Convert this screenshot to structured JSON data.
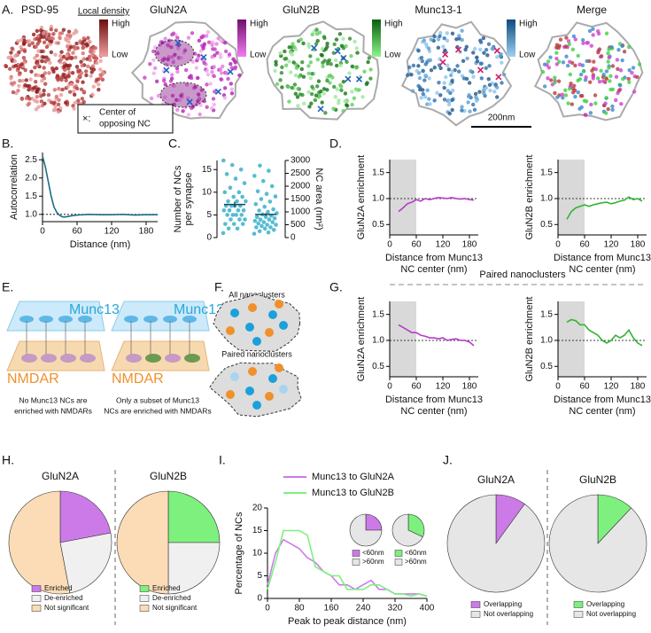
{
  "panel_labels": [
    "A.",
    "B.",
    "C.",
    "D.",
    "E.",
    "F.",
    "G.",
    "H.",
    "I.",
    "J."
  ],
  "panel_a": {
    "images": [
      {
        "title": "PSD-95"
      },
      {
        "title": "GluN2A"
      },
      {
        "title": "GluN2B"
      },
      {
        "title": "Munc13-1"
      },
      {
        "title": "Merge"
      }
    ],
    "colorbar_title": "Local density",
    "colorbars": [
      {
        "high": "High",
        "low": "Low"
      },
      {
        "high": "High",
        "low": "Low"
      },
      {
        "high": "High",
        "low": "Low"
      },
      {
        "high": "High",
        "low": "Low"
      }
    ],
    "marker_legend": {
      "symbol": "×:",
      "lines": [
        "Center of",
        "opposing NC"
      ]
    },
    "scale_bar": "200nm"
  },
  "panel_e": {
    "schematics": [
      {
        "top": "Munc13",
        "bottom": "NMDAR",
        "caption": [
          "No Munc13 NCs are",
          "enriched with NMDARs"
        ]
      },
      {
        "top": "Munc13",
        "bottom": "NMDAR",
        "caption": [
          "Only a subset of Munc13",
          "NCs are enriched with NMDARs"
        ]
      }
    ]
  },
  "panel_f": {
    "labels": [
      "All nanoclusters",
      "Paired nanoclusters"
    ]
  },
  "panel_g": {
    "title": "Paired nanoclusters"
  },
  "chart_data": [
    {
      "type": "line",
      "ylabel": "Autocorrelation",
      "xlabel": [
        "Distance (nm)"
      ],
      "x": [
        0,
        5,
        10,
        15,
        20,
        25,
        30,
        35,
        40,
        50,
        60,
        80,
        100,
        120,
        140,
        160,
        180,
        200
      ],
      "series": [
        {
          "color": "#1d6f84",
          "values": [
            2.6,
            2.3,
            1.9,
            1.5,
            1.2,
            1.05,
            0.97,
            0.93,
            0.93,
            0.96,
            0.98,
            1.0,
            0.99,
            0.99,
            1.0,
            0.98,
            0.99,
            0.99
          ]
        }
      ],
      "xlim": [
        0,
        200
      ],
      "xticks": [
        0,
        60,
        120,
        180
      ],
      "ylim": [
        0.8,
        2.7
      ],
      "yticks": [
        {
          "value": 1.0,
          "label": "1.0"
        },
        1.5,
        {
          "value": 2.0,
          "label": "2.0"
        },
        2.5
      ],
      "hline": 1
    },
    {
      "type": "strip",
      "ylabel": [
        "Number of NCs",
        "per synapse"
      ],
      "y2label": "NC area (nm²)",
      "series": [
        {
          "color": "#3ab0c8",
          "axis": "y",
          "mean": 7.3,
          "error": 0.6,
          "values": [
            1,
            2,
            2,
            3,
            3,
            3,
            4,
            4,
            4,
            5,
            5,
            5,
            5,
            6,
            6,
            6,
            6,
            7,
            7,
            7,
            7,
            8,
            8,
            8,
            9,
            9,
            10,
            10,
            11,
            12,
            13,
            14,
            15,
            16,
            17
          ]
        },
        {
          "color": "#3ab0c8",
          "axis": "y2",
          "mean": 900,
          "error": 50,
          "values": [
            150,
            200,
            250,
            300,
            350,
            400,
            400,
            450,
            500,
            500,
            550,
            600,
            600,
            650,
            700,
            700,
            750,
            800,
            800,
            850,
            900,
            950,
            1000,
            1050,
            1100,
            1200,
            1300,
            1400,
            1500,
            1600,
            1700,
            1800,
            2000,
            2200,
            2400,
            2600,
            2800
          ]
        }
      ],
      "ylim": [
        0,
        17
      ],
      "yticks": [
        0,
        5,
        10,
        15
      ],
      "y2lim": [
        0,
        3000
      ],
      "y2ticks": [
        0,
        500,
        1000,
        1500,
        2000,
        2500,
        3000
      ]
    },
    {
      "type": "line",
      "ylabel": "GluN2A enrichment",
      "xlabel": [
        "Distance from Munc13",
        "NC center (nm)"
      ],
      "x": [
        20,
        30,
        40,
        50,
        60,
        70,
        80,
        90,
        100,
        110,
        120,
        130,
        140,
        150,
        160,
        170,
        180,
        190
      ],
      "series": [
        {
          "color": "#b63cc8",
          "values": [
            0.75,
            0.82,
            0.9,
            0.93,
            0.98,
            0.95,
            1.0,
            0.98,
            1.0,
            1.02,
            1.01,
            1.0,
            1.02,
            1.0,
            0.99,
            1.0,
            0.98,
            0.97
          ]
        }
      ],
      "xlim": [
        0,
        200
      ],
      "xticks": [
        0,
        60,
        120,
        180
      ],
      "ylim": [
        0.3,
        1.75
      ],
      "yticks": [
        0.5,
        {
          "value": 1.0,
          "label": "1.0"
        },
        1.5
      ],
      "hline": 1,
      "shade": [
        0,
        60
      ]
    },
    {
      "type": "line",
      "ylabel": "GluN2B enrichment",
      "xlabel": [
        "Distance from Munc13",
        "NC center (nm)"
      ],
      "x": [
        20,
        30,
        40,
        50,
        60,
        70,
        80,
        90,
        100,
        110,
        120,
        130,
        140,
        150,
        160,
        170,
        180,
        190
      ],
      "series": [
        {
          "color": "#2fb52f",
          "values": [
            0.6,
            0.75,
            0.82,
            0.85,
            0.88,
            0.85,
            0.88,
            0.9,
            0.92,
            0.93,
            0.9,
            0.92,
            0.95,
            0.97,
            1.03,
            0.98,
            1.0,
            0.95
          ]
        }
      ],
      "xlim": [
        0,
        200
      ],
      "xticks": [
        0,
        60,
        120,
        180
      ],
      "ylim": [
        0.3,
        1.75
      ],
      "yticks": [
        0.5,
        {
          "value": 1.0,
          "label": "1.0"
        },
        1.5
      ],
      "hline": 1,
      "shade": [
        0,
        60
      ]
    },
    {
      "type": "line",
      "ylabel": "GluN2A enrichment",
      "xlabel": [
        "Distance from Munc13",
        "NC center (nm)"
      ],
      "x": [
        20,
        30,
        40,
        50,
        60,
        70,
        80,
        90,
        100,
        110,
        120,
        130,
        140,
        150,
        160,
        170,
        180,
        190
      ],
      "series": [
        {
          "color": "#b63cc8",
          "values": [
            1.3,
            1.25,
            1.2,
            1.15,
            1.15,
            1.1,
            1.08,
            1.05,
            1.05,
            1.03,
            1.05,
            1.0,
            1.02,
            1.03,
            1.0,
            1.0,
            0.97,
            0.9
          ]
        }
      ],
      "xlim": [
        0,
        200
      ],
      "xticks": [
        0,
        60,
        120,
        180
      ],
      "ylim": [
        0.3,
        1.75
      ],
      "yticks": [
        0.5,
        {
          "value": 1.0,
          "label": "1.0"
        },
        1.5
      ],
      "hline": 1,
      "shade": [
        0,
        60
      ]
    },
    {
      "type": "line",
      "ylabel": "GluN2B enrichment",
      "xlabel": [
        "Distance from Munc13",
        "NC center (nm)"
      ],
      "x": [
        20,
        30,
        40,
        50,
        60,
        70,
        80,
        90,
        100,
        110,
        120,
        130,
        140,
        150,
        160,
        170,
        180,
        190
      ],
      "series": [
        {
          "color": "#2fb52f",
          "values": [
            1.35,
            1.4,
            1.38,
            1.3,
            1.3,
            1.2,
            1.15,
            1.1,
            1.0,
            0.95,
            1.0,
            1.1,
            1.05,
            1.1,
            1.2,
            1.05,
            0.95,
            0.9
          ]
        }
      ],
      "xlim": [
        0,
        200
      ],
      "xticks": [
        0,
        60,
        120,
        180
      ],
      "ylim": [
        0.3,
        1.75
      ],
      "yticks": [
        0.5,
        {
          "value": 1.0,
          "label": "1.0"
        },
        1.5
      ],
      "hline": 1,
      "shade": [
        0,
        60
      ]
    },
    {
      "type": "pie",
      "title": "GluN2A",
      "categories": [
        "Enriched",
        "De-enriched",
        "Not significant"
      ],
      "values": [
        22,
        25,
        53
      ],
      "colors": [
        "#cc7ae8",
        "#f0f0f0",
        "#fbdcb6"
      ]
    },
    {
      "type": "pie",
      "title": "GluN2B",
      "categories": [
        "Enriched",
        "De-enriched",
        "Not significant"
      ],
      "values": [
        25,
        25,
        50
      ],
      "colors": [
        "#7ef07e",
        "#f0f0f0",
        "#fbdcb6"
      ]
    },
    {
      "type": "line",
      "ylabel": "Percentage of NCs",
      "xlabel": [
        "Peak to peak distance (nm)"
      ],
      "x": [
        0,
        20,
        40,
        60,
        80,
        100,
        120,
        140,
        160,
        180,
        200,
        220,
        240,
        260,
        280,
        300,
        320,
        340,
        360,
        380,
        400
      ],
      "series": [
        {
          "name": "Munc13 to GluN2A",
          "color": "#cc7ae8",
          "values": [
            3,
            10,
            13,
            12,
            11,
            9,
            8,
            6,
            5,
            3,
            3,
            2,
            3,
            4,
            2,
            2,
            1,
            1,
            1,
            1,
            0.5
          ]
        },
        {
          "name": "Munc13 to GluN2B",
          "color": "#7ef07e",
          "values": [
            2,
            8,
            15,
            15,
            15,
            14,
            7,
            6,
            5,
            5,
            2,
            2,
            2,
            3,
            3,
            2,
            1,
            1,
            0.5,
            1,
            0.5
          ]
        }
      ],
      "xlim": [
        0,
        400
      ],
      "xticks": [
        0,
        80,
        160,
        240,
        320,
        400
      ],
      "ylim": [
        0,
        20
      ],
      "yticks": [
        0,
        5,
        10,
        15,
        20
      ]
    },
    {
      "type": "pie",
      "categories": [
        "<60nm",
        ">60nm"
      ],
      "values": [
        25,
        75
      ],
      "colors": [
        "#cc7ae8",
        "#e6e6e6"
      ]
    },
    {
      "type": "pie",
      "categories": [
        "<60nm",
        ">60nm"
      ],
      "values": [
        32,
        68
      ],
      "colors": [
        "#7ef07e",
        "#e6e6e6"
      ]
    },
    {
      "type": "pie",
      "title": "GluN2A",
      "categories": [
        "Overlapping",
        "Not overlapping"
      ],
      "values": [
        10,
        90
      ],
      "colors": [
        "#cc7ae8",
        "#e6e6e6"
      ]
    },
    {
      "type": "pie",
      "title": "GluN2B",
      "categories": [
        "Overlapping",
        "Not overlapping"
      ],
      "values": [
        12,
        88
      ],
      "colors": [
        "#7ef07e",
        "#e6e6e6"
      ]
    }
  ]
}
